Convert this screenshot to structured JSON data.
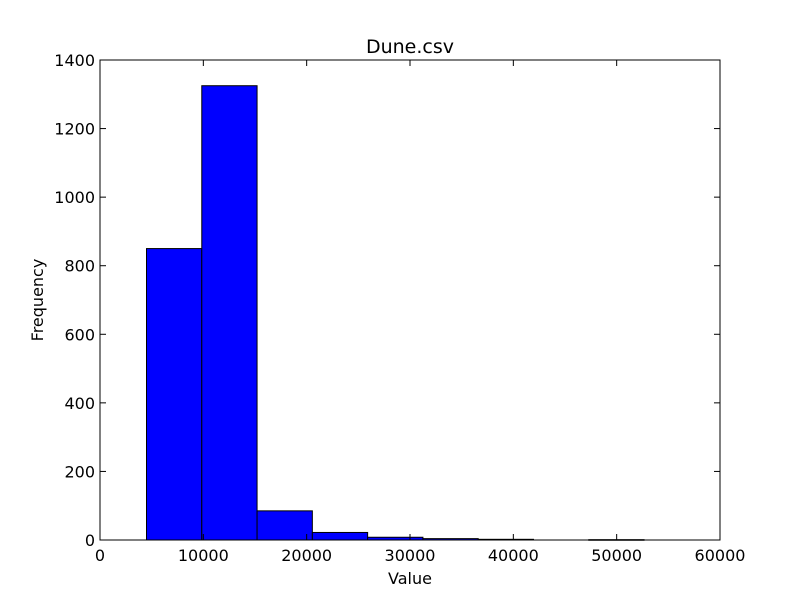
{
  "chart_data": {
    "type": "bar",
    "title": "Dune.csv",
    "xlabel": "Value",
    "ylabel": "Frequency",
    "xlim": [
      0,
      60000
    ],
    "ylim": [
      0,
      1400
    ],
    "grid": false,
    "legend": "none",
    "bar_color": "#0000ff",
    "edge_color": "#000000",
    "x_ticks": [
      0,
      10000,
      20000,
      30000,
      40000,
      50000,
      60000
    ],
    "x_tick_labels": [
      "0",
      "10000",
      "20000",
      "30000",
      "40000",
      "50000",
      "60000"
    ],
    "y_ticks": [
      0,
      200,
      400,
      600,
      800,
      1000,
      1200,
      1400
    ],
    "y_tick_labels": [
      "0",
      "200",
      "400",
      "600",
      "800",
      "1000",
      "1200",
      "1400"
    ],
    "bins": [
      {
        "start": 4500,
        "end": 9850,
        "value": 850
      },
      {
        "start": 9850,
        "end": 15200,
        "value": 1325
      },
      {
        "start": 15200,
        "end": 20550,
        "value": 85
      },
      {
        "start": 20550,
        "end": 25900,
        "value": 22
      },
      {
        "start": 25900,
        "end": 31250,
        "value": 8
      },
      {
        "start": 31250,
        "end": 36600,
        "value": 4
      },
      {
        "start": 36600,
        "end": 41950,
        "value": 2
      },
      {
        "start": 41950,
        "end": 47300,
        "value": 0
      },
      {
        "start": 47300,
        "end": 52650,
        "value": 1
      }
    ]
  }
}
